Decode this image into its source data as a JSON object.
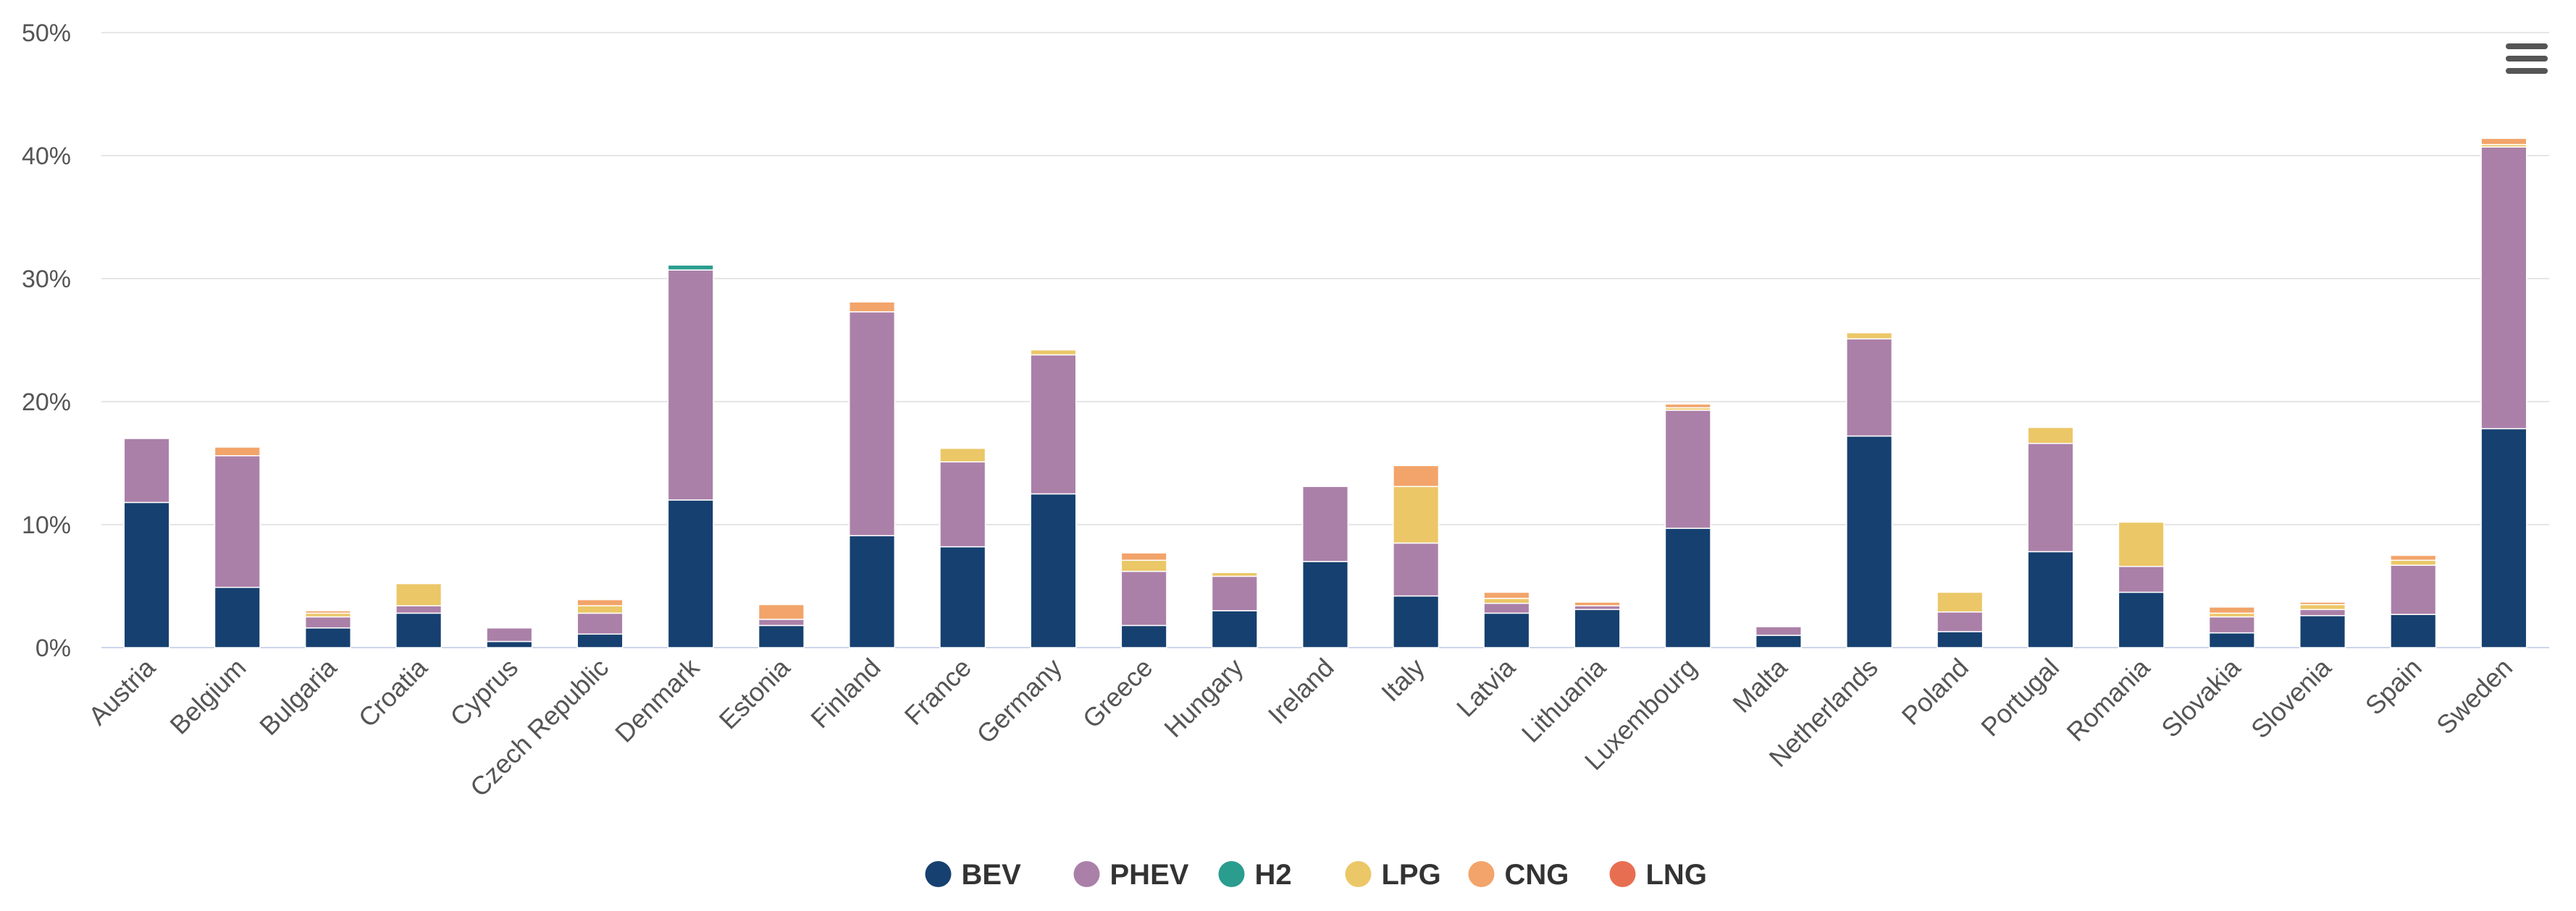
{
  "chart_data": {
    "type": "bar",
    "stacked": true,
    "title": "",
    "xlabel": "",
    "ylabel": "",
    "ylim": [
      0,
      50
    ],
    "y_ticks": [
      "0%",
      "10%",
      "20%",
      "30%",
      "40%",
      "50%"
    ],
    "y_tick_values": [
      0,
      10,
      20,
      30,
      40,
      50
    ],
    "grid": true,
    "legend_position": "bottom-center",
    "categories": [
      "Austria",
      "Belgium",
      "Bulgaria",
      "Croatia",
      "Cyprus",
      "Czech Republic",
      "Denmark",
      "Estonia",
      "Finland",
      "France",
      "Germany",
      "Greece",
      "Hungary",
      "Ireland",
      "Italy",
      "Latvia",
      "Lithuania",
      "Luxembourg",
      "Malta",
      "Netherlands",
      "Poland",
      "Portugal",
      "Romania",
      "Slovakia",
      "Slovenia",
      "Spain",
      "Sweden"
    ],
    "series": [
      {
        "name": "BEV",
        "color": "#16406f",
        "values": [
          11.8,
          4.9,
          1.6,
          2.8,
          0.5,
          1.1,
          12.0,
          1.8,
          9.1,
          8.2,
          12.5,
          1.8,
          3.0,
          7.0,
          4.2,
          2.8,
          3.1,
          9.7,
          1.0,
          17.2,
          1.3,
          7.8,
          4.5,
          1.2,
          2.6,
          2.7,
          17.8
        ]
      },
      {
        "name": "PHEV",
        "color": "#ab80a8",
        "values": [
          5.2,
          10.7,
          0.9,
          0.6,
          1.1,
          1.7,
          18.7,
          0.5,
          18.2,
          6.9,
          11.3,
          4.4,
          2.8,
          6.1,
          4.3,
          0.8,
          0.3,
          9.6,
          0.7,
          7.9,
          1.6,
          8.8,
          2.1,
          1.3,
          0.5,
          4.0,
          22.9
        ]
      },
      {
        "name": "H2",
        "color": "#2a9d8f",
        "values": [
          0,
          0,
          0,
          0,
          0,
          0,
          0.4,
          0,
          0,
          0,
          0,
          0,
          0,
          0,
          0,
          0,
          0,
          0,
          0,
          0,
          0,
          0,
          0,
          0,
          0,
          0,
          0
        ]
      },
      {
        "name": "LPG",
        "color": "#ebc767",
        "values": [
          0,
          0,
          0.3,
          1.8,
          0,
          0.6,
          0,
          0,
          0,
          1.1,
          0.4,
          0.9,
          0.3,
          0,
          4.6,
          0.4,
          0,
          0.2,
          0,
          0.5,
          1.6,
          1.3,
          3.6,
          0.3,
          0.4,
          0.4,
          0.2
        ]
      },
      {
        "name": "CNG",
        "color": "#f2a46a",
        "values": [
          0,
          0.7,
          0.2,
          0,
          0,
          0.5,
          0,
          1.2,
          0.8,
          0,
          0,
          0.6,
          0,
          0,
          1.7,
          0.5,
          0.3,
          0.3,
          0,
          0,
          0,
          0,
          0,
          0.5,
          0.2,
          0.4,
          0.5
        ]
      },
      {
        "name": "LNG",
        "color": "#e86e52",
        "values": [
          0,
          0,
          0,
          0,
          0,
          0,
          0,
          0,
          0,
          0,
          0,
          0,
          0,
          0,
          0,
          0,
          0,
          0,
          0,
          0,
          0,
          0,
          0,
          0,
          0,
          0,
          0
        ]
      }
    ]
  },
  "ui": {
    "menu_icon": "hamburger-menu-icon"
  }
}
